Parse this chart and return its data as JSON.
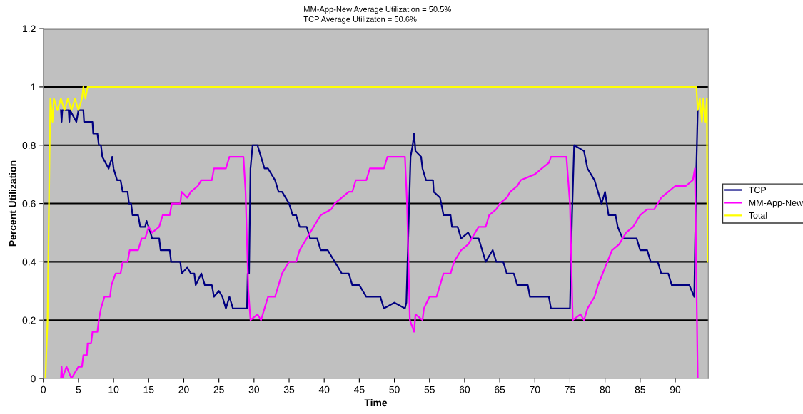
{
  "chart_data": {
    "type": "line",
    "xlabel": "Time",
    "ylabel": "Percent Utilization",
    "annotations": [
      "MM-App-New Average Utilization = 50.5%",
      "TCP Average Utilizaton = 50.6%"
    ],
    "xlim": [
      0,
      94.7
    ],
    "xticks": [
      0,
      5,
      10,
      15,
      20,
      25,
      30,
      35,
      40,
      45,
      50,
      55,
      60,
      65,
      70,
      75,
      80,
      85,
      90
    ],
    "ylim": [
      0,
      1.2
    ],
    "yticks": [
      0,
      0.2,
      0.4,
      0.6,
      0.8,
      1,
      1.2
    ],
    "grid": "y",
    "legend": "right",
    "marker": "none",
    "line_style": "solid",
    "series": [
      {
        "name": "TCP",
        "color": "#000080",
        "x": [
          2.5,
          2.6,
          2.7,
          3.6,
          3.7,
          3.8,
          4.7,
          5,
          5.7,
          5.8,
          7,
          7.1,
          7.7,
          7.9,
          8.2,
          8.4,
          9.3,
          9.8,
          10,
          10.5,
          11,
          11.3,
          12,
          12.2,
          12.5,
          12.7,
          13.5,
          13.8,
          14.5,
          14.7,
          15,
          15.5,
          16.5,
          16.7,
          18,
          18.2,
          19.5,
          19.7,
          20.5,
          21,
          21.5,
          21.7,
          22.5,
          23,
          24,
          24.3,
          25,
          25.5,
          26,
          26.5,
          27,
          28.5,
          29,
          29.1,
          29.3,
          29.5,
          29.8,
          30.5,
          31,
          31.5,
          32,
          33,
          33.5,
          34,
          35,
          35.5,
          36,
          36.5,
          37.5,
          38,
          39,
          39.5,
          40.5,
          41.5,
          42.5,
          43.5,
          44,
          45,
          46,
          48,
          48.5,
          50,
          51.5,
          51.7,
          52.3,
          52.6,
          52.8,
          53,
          53.8,
          54,
          54.5,
          55.5,
          55.6,
          56.5,
          57,
          58,
          58.2,
          59,
          59.5,
          60.5,
          61,
          62,
          62.5,
          63,
          64,
          64.5,
          65.5,
          66,
          67,
          67.5,
          69,
          69.3,
          72,
          72.3,
          75,
          75.3,
          75.6,
          77,
          77.5,
          78.5,
          79.5,
          80,
          80.5,
          81.5,
          81.8,
          82.5,
          84.5,
          85,
          86,
          86.5,
          87.5,
          88,
          89,
          89.5,
          92,
          92.7,
          93,
          93.2
        ],
        "values": [
          0.92,
          0.88,
          0.92,
          0.92,
          0.88,
          0.92,
          0.88,
          0.92,
          0.92,
          0.88,
          0.88,
          0.84,
          0.84,
          0.8,
          0.8,
          0.76,
          0.72,
          0.76,
          0.72,
          0.68,
          0.68,
          0.64,
          0.64,
          0.6,
          0.6,
          0.56,
          0.56,
          0.52,
          0.52,
          0.54,
          0.52,
          0.48,
          0.48,
          0.44,
          0.44,
          0.4,
          0.4,
          0.36,
          0.38,
          0.36,
          0.36,
          0.32,
          0.36,
          0.32,
          0.32,
          0.28,
          0.3,
          0.28,
          0.24,
          0.28,
          0.24,
          0.24,
          0.24,
          0.36,
          0.36,
          0.72,
          0.8,
          0.8,
          0.76,
          0.72,
          0.72,
          0.68,
          0.64,
          0.64,
          0.6,
          0.56,
          0.56,
          0.52,
          0.52,
          0.48,
          0.48,
          0.44,
          0.44,
          0.4,
          0.36,
          0.36,
          0.32,
          0.32,
          0.28,
          0.28,
          0.24,
          0.26,
          0.24,
          0.26,
          0.76,
          0.8,
          0.84,
          0.78,
          0.76,
          0.72,
          0.68,
          0.68,
          0.64,
          0.62,
          0.56,
          0.56,
          0.52,
          0.52,
          0.48,
          0.5,
          0.48,
          0.48,
          0.44,
          0.4,
          0.44,
          0.4,
          0.4,
          0.36,
          0.36,
          0.32,
          0.32,
          0.28,
          0.28,
          0.24,
          0.24,
          0.56,
          0.8,
          0.78,
          0.72,
          0.68,
          0.6,
          0.64,
          0.56,
          0.56,
          0.52,
          0.48,
          0.48,
          0.44,
          0.44,
          0.4,
          0.4,
          0.36,
          0.36,
          0.32,
          0.32,
          0.28,
          0.72,
          0.92
        ]
      },
      {
        "name": "MM-App-New",
        "color": "#ff00ff",
        "x": [
          2.5,
          2.6,
          2.7,
          3.3,
          4,
          5,
          5.5,
          5.7,
          6.2,
          6.3,
          6.8,
          7,
          7.7,
          7.9,
          8.2,
          8.7,
          9.5,
          9.7,
          10.3,
          11,
          11.3,
          12,
          12.3,
          13.5,
          14,
          14.5,
          15,
          15.5,
          16.5,
          17,
          18,
          18.3,
          19.5,
          19.7,
          20.5,
          21,
          22,
          22.5,
          24,
          24.3,
          26,
          26.5,
          28.5,
          28.8,
          29.2,
          29.5,
          30.5,
          31,
          31.5,
          32,
          33,
          33.5,
          34,
          35,
          36,
          36.5,
          37.5,
          38.5,
          39.5,
          41,
          41.5,
          42.5,
          43.5,
          44,
          44.5,
          46,
          46.5,
          48.5,
          49,
          51.5,
          51.8,
          52.2,
          52.8,
          53,
          54,
          54.2,
          55,
          56,
          56.5,
          57,
          58,
          58.5,
          59.5,
          60.5,
          61,
          62,
          63,
          63.5,
          64.5,
          65,
          66,
          66.5,
          67.5,
          68,
          70,
          71,
          72,
          72.3,
          74.5,
          75,
          75.4,
          76.5,
          77,
          77.5,
          78.5,
          79,
          80,
          81,
          82,
          83,
          84,
          85,
          86,
          87,
          88,
          89,
          90,
          91.5,
          92.5,
          92.8,
          93.2
        ],
        "values": [
          0,
          0.04,
          0,
          0.04,
          0,
          0.04,
          0.04,
          0.08,
          0.08,
          0.12,
          0.12,
          0.16,
          0.16,
          0.2,
          0.24,
          0.28,
          0.28,
          0.32,
          0.36,
          0.36,
          0.4,
          0.4,
          0.44,
          0.44,
          0.48,
          0.48,
          0.52,
          0.5,
          0.52,
          0.56,
          0.56,
          0.6,
          0.6,
          0.64,
          0.62,
          0.64,
          0.66,
          0.68,
          0.68,
          0.72,
          0.72,
          0.76,
          0.76,
          0.64,
          0.3,
          0.2,
          0.22,
          0.2,
          0.24,
          0.28,
          0.28,
          0.32,
          0.36,
          0.4,
          0.4,
          0.44,
          0.48,
          0.52,
          0.56,
          0.58,
          0.6,
          0.62,
          0.64,
          0.64,
          0.68,
          0.68,
          0.72,
          0.72,
          0.76,
          0.76,
          0.6,
          0.2,
          0.16,
          0.22,
          0.2,
          0.24,
          0.28,
          0.28,
          0.32,
          0.36,
          0.36,
          0.4,
          0.44,
          0.46,
          0.48,
          0.52,
          0.52,
          0.56,
          0.58,
          0.6,
          0.62,
          0.64,
          0.66,
          0.68,
          0.7,
          0.72,
          0.74,
          0.76,
          0.76,
          0.6,
          0.2,
          0.22,
          0.2,
          0.24,
          0.28,
          0.32,
          0.38,
          0.44,
          0.46,
          0.5,
          0.52,
          0.56,
          0.58,
          0.58,
          0.62,
          0.64,
          0.66,
          0.66,
          0.68,
          0.72,
          0
        ]
      },
      {
        "name": "Total",
        "color": "#ffff00",
        "x": [
          0.3,
          0.6,
          0.9,
          1,
          1.3,
          1.5,
          2,
          2.5,
          3,
          3.5,
          4,
          4.5,
          5,
          5.5,
          5.7,
          6,
          6.3,
          93,
          93.2,
          93.5,
          93.8,
          94,
          94.3,
          94.5,
          94.6
        ],
        "values": [
          0,
          0.2,
          0.8,
          0.96,
          0.88,
          0.96,
          0.92,
          0.96,
          0.92,
          0.96,
          0.92,
          0.96,
          0.92,
          0.96,
          1,
          0.96,
          1,
          1,
          0.92,
          0.96,
          0.88,
          0.96,
          0.88,
          0.96,
          0.4
        ]
      }
    ]
  }
}
